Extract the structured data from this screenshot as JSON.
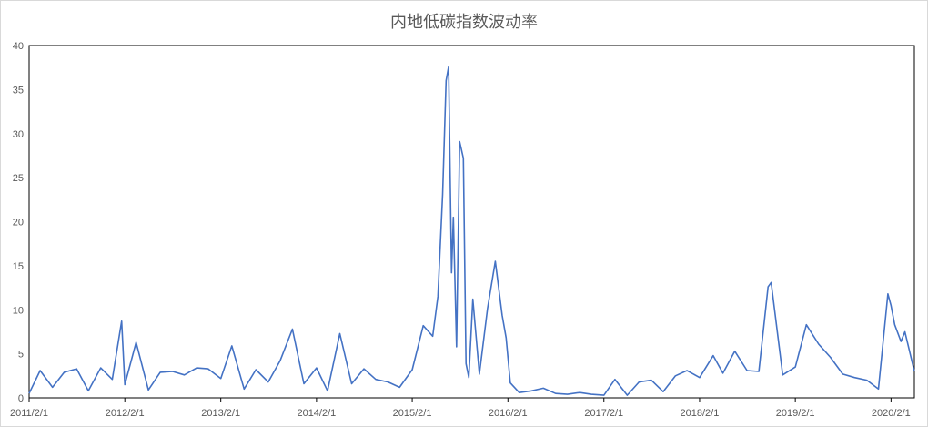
{
  "chart_data": {
    "type": "line",
    "title": "内地低碳指数波动率",
    "xlabel": "",
    "ylabel": "",
    "x_tick_labels": [
      "2011/2/1",
      "2012/2/1",
      "2013/2/1",
      "2014/2/1",
      "2015/2/1",
      "2016/2/1",
      "2017/2/1",
      "2018/2/1",
      "2019/2/1",
      "2020/2/1"
    ],
    "x_range": [
      "2011-02-01",
      "2020-04-30"
    ],
    "y_tick_labels": [
      "0",
      "5",
      "10",
      "15",
      "20",
      "25",
      "30",
      "35",
      "40"
    ],
    "ylim": [
      0,
      40
    ],
    "grid": false,
    "legend": "none",
    "series": [
      {
        "color": "#4472c4",
        "x": [
          "2011-02-01",
          "2011-03-15",
          "2011-05-01",
          "2011-06-15",
          "2011-08-01",
          "2011-09-15",
          "2011-11-01",
          "2011-12-15",
          "2012-01-20",
          "2012-02-01",
          "2012-03-15",
          "2012-05-01",
          "2012-06-15",
          "2012-08-01",
          "2012-09-15",
          "2012-11-01",
          "2012-12-15",
          "2013-02-01",
          "2013-03-15",
          "2013-05-01",
          "2013-06-15",
          "2013-08-01",
          "2013-09-15",
          "2013-11-01",
          "2013-12-15",
          "2014-02-01",
          "2014-03-15",
          "2014-05-01",
          "2014-06-15",
          "2014-08-01",
          "2014-09-15",
          "2014-11-01",
          "2014-12-15",
          "2015-02-01",
          "2015-03-15",
          "2015-04-20",
          "2015-05-10",
          "2015-05-28",
          "2015-06-10",
          "2015-06-20",
          "2015-07-01",
          "2015-07-08",
          "2015-07-20",
          "2015-08-01",
          "2015-08-15",
          "2015-08-25",
          "2015-09-05",
          "2015-09-20",
          "2015-10-15",
          "2015-11-15",
          "2015-12-15",
          "2016-01-10",
          "2016-01-25",
          "2016-02-10",
          "2016-03-15",
          "2016-05-01",
          "2016-06-15",
          "2016-08-01",
          "2016-09-15",
          "2016-11-01",
          "2016-12-15",
          "2017-02-01",
          "2017-03-15",
          "2017-05-01",
          "2017-06-15",
          "2017-08-01",
          "2017-09-15",
          "2017-11-01",
          "2017-12-15",
          "2018-02-01",
          "2018-03-25",
          "2018-05-01",
          "2018-06-15",
          "2018-08-01",
          "2018-09-15",
          "2018-10-20",
          "2018-11-01",
          "2018-12-15",
          "2019-02-01",
          "2019-03-15",
          "2019-05-01",
          "2019-06-15",
          "2019-08-01",
          "2019-09-15",
          "2019-11-01",
          "2019-12-15",
          "2020-01-20",
          "2020-02-01",
          "2020-02-15",
          "2020-03-10",
          "2020-03-25",
          "2020-04-30"
        ],
        "values": [
          0.5,
          3.1,
          1.2,
          2.9,
          3.3,
          0.8,
          3.4,
          2.1,
          8.7,
          1.5,
          6.3,
          0.9,
          2.9,
          3.0,
          2.6,
          3.4,
          3.3,
          2.2,
          5.9,
          1.0,
          3.2,
          1.8,
          4.2,
          7.8,
          1.6,
          3.4,
          0.8,
          7.3,
          1.6,
          3.3,
          2.1,
          1.8,
          1.2,
          3.2,
          8.2,
          7.0,
          11.5,
          23.1,
          36.0,
          37.6,
          14.2,
          20.5,
          5.8,
          29.1,
          27.2,
          3.9,
          2.3,
          11.2,
          2.7,
          10.1,
          15.5,
          9.4,
          6.8,
          1.7,
          0.6,
          0.8,
          1.1,
          0.5,
          0.4,
          0.6,
          0.4,
          0.3,
          2.1,
          0.3,
          1.8,
          2.0,
          0.7,
          2.5,
          3.1,
          2.3,
          4.8,
          2.8,
          5.3,
          3.1,
          3.0,
          12.6,
          13.1,
          2.6,
          3.5,
          8.3,
          6.1,
          4.6,
          2.7,
          2.3,
          2.0,
          1.0,
          11.8,
          10.5,
          8.3,
          6.4,
          7.5,
          3.0
        ]
      }
    ]
  }
}
